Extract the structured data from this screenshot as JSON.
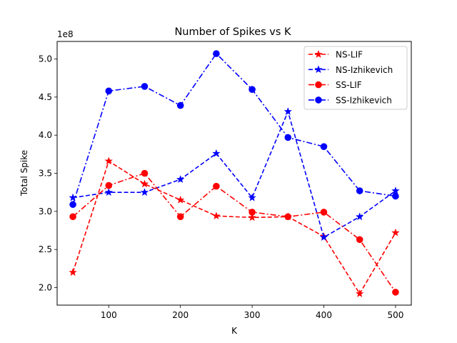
{
  "chart_data": {
    "type": "line",
    "title": "Number of Spikes vs K",
    "xlabel": "K",
    "ylabel": "Total Spike",
    "y_multiplier": "1e8",
    "y_scale": 100000000,
    "x": [
      50,
      100,
      150,
      200,
      250,
      300,
      350,
      400,
      450,
      500
    ],
    "xticks": [
      100,
      200,
      300,
      400,
      500
    ],
    "xlim": [
      28,
      522
    ],
    "yticks": [
      2.0,
      2.5,
      3.0,
      3.5,
      4.0,
      4.5,
      5.0
    ],
    "ytick_labels": [
      "2.0",
      "2.5",
      "3.0",
      "3.5",
      "4.0",
      "4.5",
      "5.0"
    ],
    "ylim": [
      1.77,
      5.23
    ],
    "grid": false,
    "legend_position": "upper right",
    "series": [
      {
        "name": "NS-LIF",
        "color": "#ff0000",
        "linestyle": "dashed",
        "marker": "star",
        "values": [
          2.2,
          3.66,
          3.36,
          3.15,
          2.94,
          2.92,
          2.93,
          2.67,
          1.92,
          2.72
        ]
      },
      {
        "name": "NS-Izhikevich",
        "color": "#0000ff",
        "linestyle": "dashed",
        "marker": "star",
        "values": [
          3.18,
          3.25,
          3.25,
          3.42,
          3.76,
          3.18,
          4.31,
          2.66,
          2.93,
          3.27
        ]
      },
      {
        "name": "SS-LIF",
        "color": "#ff0000",
        "linestyle": "dashdot",
        "marker": "circle",
        "values": [
          2.93,
          3.34,
          3.5,
          2.93,
          3.33,
          2.99,
          2.93,
          2.99,
          2.63,
          1.94
        ]
      },
      {
        "name": "SS-Izhikevich",
        "color": "#0000ff",
        "linestyle": "dashdot",
        "marker": "circle",
        "values": [
          3.09,
          4.58,
          4.64,
          4.39,
          5.07,
          4.6,
          3.97,
          3.85,
          3.27,
          3.2
        ]
      }
    ]
  }
}
